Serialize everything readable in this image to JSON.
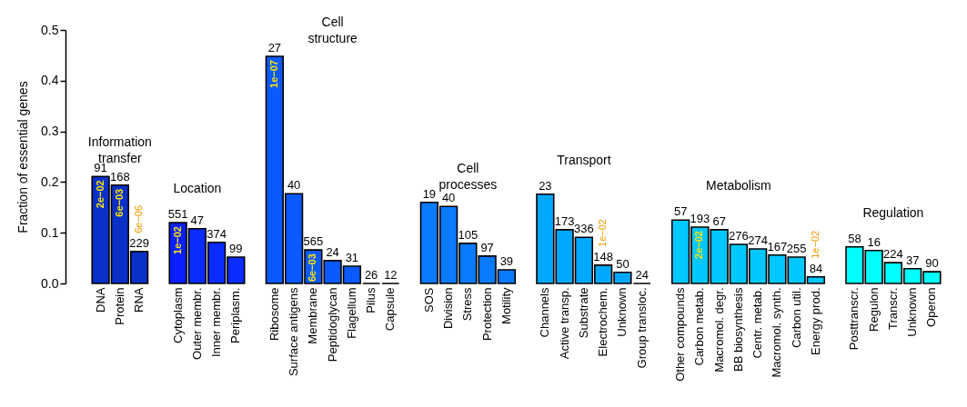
{
  "chart_data": {
    "type": "bar",
    "ylabel": "Fraction of essential genes",
    "categories": [
      "DNA",
      "Protein",
      "RNA",
      null,
      "Cytoplasm",
      "Outer membr.",
      "Inner membr.",
      "Periplasm.",
      null,
      "Ribosome",
      "Surface antigens",
      "Membrane",
      "Peptidoglycan",
      "Flagellum",
      "Pilus",
      "Capsule",
      null,
      "SOS",
      "Division",
      "Stress",
      "Protection",
      "Motility",
      null,
      "Channels",
      "Active transp.",
      "Substrate",
      "Electrochem.",
      "Unknown",
      "Group transloc.",
      null,
      "Other compounds",
      "Carbon metab.",
      "Macromol. degr.",
      "BB biosynthesis",
      "Centr. metab.",
      "Macromol. synth.",
      "Carbon util.",
      "Energy prod.",
      null,
      "Posttranscr.",
      "Regulon",
      "Transcr.",
      "Unknown",
      "Operon"
    ],
    "values": [
      0.211,
      0.194,
      0.063,
      null,
      0.12,
      0.108,
      0.081,
      0.052,
      null,
      0.448,
      0.177,
      0.066,
      0.045,
      0.034,
      0,
      0,
      null,
      0.16,
      0.152,
      0.079,
      0.054,
      0.027,
      null,
      0.176,
      0.106,
      0.091,
      0.036,
      0.022,
      0,
      null,
      0.125,
      0.111,
      0.106,
      0.077,
      0.068,
      0.056,
      0.052,
      0.013,
      null,
      0.072,
      0.065,
      0.041,
      0.029,
      0.023
    ],
    "colors": [
      "#0a30c8",
      "#0a30c8",
      "#0a30c8",
      null,
      "#0a1eff",
      "#0a2cff",
      "#0a2cff",
      "#0a2cff",
      null,
      "#0a5aff",
      "#0a5aff",
      "#0a5aff",
      "#0a5aff",
      "#0a5aff",
      "#000000",
      "#000000",
      null,
      "#0a7aff",
      "#0a7aff",
      "#0a7aff",
      "#0a7aff",
      "#0a7aff",
      null,
      "#00a8ff",
      "#00a8ff",
      "#00a8ff",
      "#00a8ff",
      "#00a8ff",
      "#000000",
      null,
      "#00c8ff",
      "#00c8ff",
      "#00c8ff",
      "#00c8ff",
      "#00c8ff",
      "#00c8ff",
      "#00c8ff",
      "#00c8ff",
      null,
      "#00ffff",
      "#00ffff",
      "#00ffff",
      "#00ffff",
      "#00ffff"
    ],
    "ylim": [
      0,
      0.5
    ],
    "yticks": [
      {
        "value": 0,
        "label": "0.0"
      },
      {
        "value": 0.1,
        "label": "0.1"
      },
      {
        "value": 0.2,
        "label": "0.2"
      },
      {
        "value": 0.3,
        "label": "0.3"
      },
      {
        "value": 0.4,
        "label": "0.4"
      },
      {
        "value": 0.5,
        "label": "0.5"
      }
    ],
    "grid": false,
    "annotations": [
      "Information transfer",
      "Location",
      "Cell structure",
      "Cell processes",
      "Transport",
      "Metabolism",
      "Regulation",
      "91",
      "168",
      "229",
      "551",
      "47",
      "374",
      "99",
      "27",
      "40",
      "565",
      "24",
      "31",
      "26",
      "12",
      "19",
      "40",
      "105",
      "97",
      "39",
      "23",
      "173",
      "336",
      "148",
      "50",
      "24",
      "57",
      "193",
      "67",
      "276",
      "274",
      "167",
      "255",
      "84",
      "58",
      "16",
      "224",
      "37",
      "90",
      {
        "text": "2e−02",
        "x": "DNA",
        "y": 0.211
      },
      {
        "text": "6e−03",
        "x": "Protein",
        "y": 0.194
      },
      {
        "text": "6e−06",
        "x": "RNA",
        "y": 0.063
      },
      {
        "text": "1e−02",
        "x": "Cytoplasm",
        "y": 0.12
      },
      {
        "text": "1e−07",
        "x": "Ribosome",
        "y": 0.448
      },
      {
        "text": "6e−03",
        "x": "Membrane",
        "y": 0.066
      },
      {
        "text": "1e−02",
        "x": "Electrochem.",
        "y": 0.036
      },
      {
        "text": "2e−02",
        "x": "Carbon metab.",
        "y": 0.111
      },
      {
        "text": "1e−02",
        "x": "Energy prod.",
        "y": 0.013
      }
    ]
  }
}
